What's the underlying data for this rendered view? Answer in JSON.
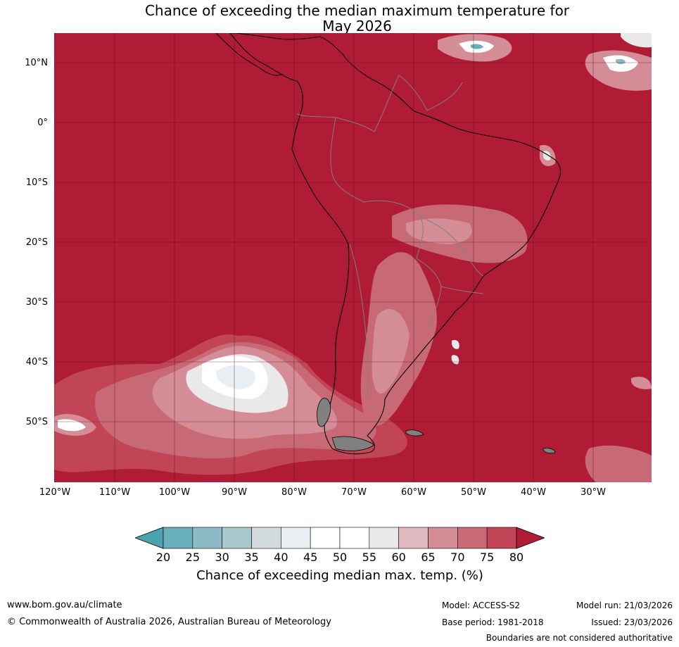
{
  "title": {
    "line1": "Chance of exceeding the median maximum temperature for",
    "line2": "May 2026"
  },
  "map": {
    "lat_labels": [
      "10°N",
      "0°",
      "10°S",
      "20°S",
      "30°S",
      "40°S",
      "50°S"
    ],
    "lon_labels": [
      "120°W",
      "110°W",
      "100°W",
      "90°W",
      "80°W",
      "70°W",
      "60°W",
      "50°W",
      "40°W",
      "30°W"
    ],
    "background_category": "above 80%",
    "colors": {
      "ocean_fill": "#b01b36",
      "grid": "#5a0e1c",
      "coast": "#000000",
      "borders": "#808080"
    }
  },
  "colorbar": {
    "ticks": [
      "20",
      "25",
      "30",
      "35",
      "40",
      "45",
      "50",
      "55",
      "60",
      "65",
      "70",
      "75",
      "80"
    ],
    "colors": [
      "#4ba3b1",
      "#6aafbc",
      "#8cbbc6",
      "#aac7cc",
      "#d3dadc",
      "#e9eff2",
      "#ffffff",
      "#ffffff",
      "#ebe8ea",
      "#e0b8bf",
      "#d48d96",
      "#c86a75",
      "#c24556",
      "#b01b36"
    ],
    "label": "Chance of exceeding median max. temp. (%)"
  },
  "footer": {
    "website": "www.bom.gov.au/climate",
    "copyright": "© Commonwealth of Australia 2026, Australian Bureau of Meteorology",
    "model": "Model: ACCESS-S2",
    "base_period": "Base period: 1981-2018",
    "model_run": "Model run: 21/03/2026",
    "issued": "Issued: 23/03/2026",
    "disclaimer": "Boundaries are not considered authoritative"
  }
}
